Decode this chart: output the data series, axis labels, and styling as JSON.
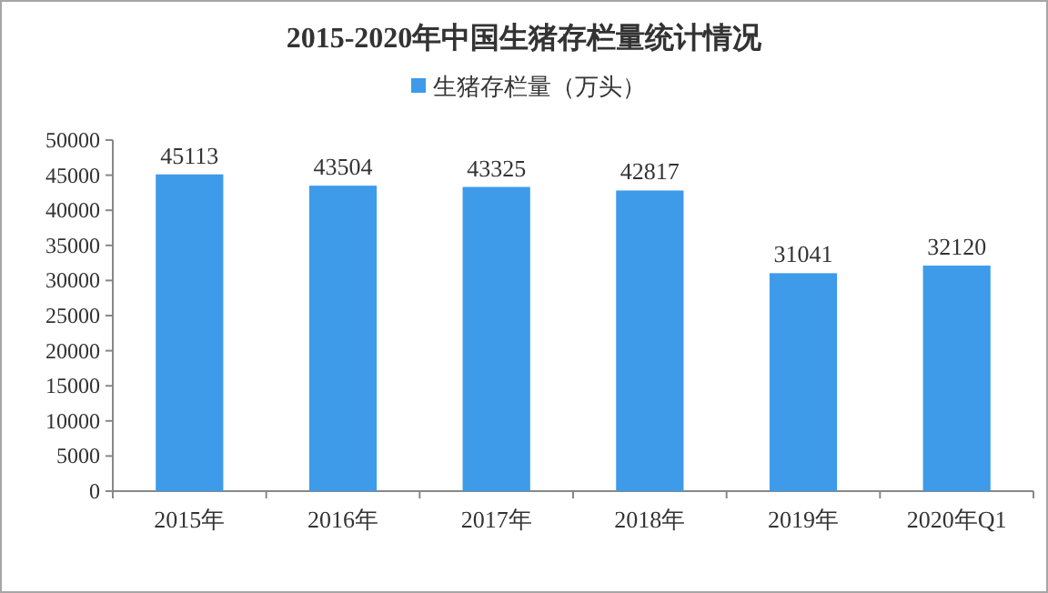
{
  "chart_data": {
    "type": "bar",
    "title": "2015-2020年中国生猪存栏量统计情况",
    "categories": [
      "2015年",
      "2016年",
      "2017年",
      "2018年",
      "2019年",
      "2020年Q1"
    ],
    "series": [
      {
        "name": "生猪存栏量（万头）",
        "color": "#3d9be9",
        "values": [
          45113,
          43504,
          43325,
          42817,
          31041,
          32120
        ]
      }
    ],
    "ylim": [
      0,
      50000
    ],
    "yticks": [
      0,
      5000,
      10000,
      15000,
      20000,
      25000,
      30000,
      35000,
      40000,
      45000,
      50000
    ],
    "legend": "top",
    "data_labels": true
  }
}
